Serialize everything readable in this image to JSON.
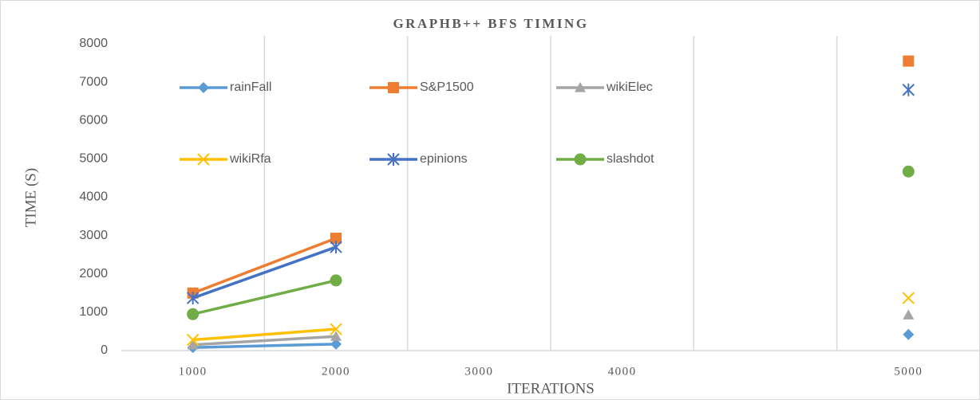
{
  "chart_data": {
    "type": "line",
    "title": "GRAPHB++ BFS TIMING",
    "xlabel": "ITERATIONS",
    "ylabel": "TIME (S)",
    "categories": [
      "1000",
      "2000",
      "3000",
      "4000",
      null,
      "5000"
    ],
    "series": [
      {
        "name": "rainFall",
        "color": "#5b9bd5",
        "marker": "diamond",
        "values": [
          80,
          170,
          null,
          null,
          null,
          420
        ]
      },
      {
        "name": "S&P1500",
        "color": "#ed7d31",
        "marker": "square",
        "values": [
          1500,
          2930,
          null,
          null,
          null,
          7550
        ]
      },
      {
        "name": "wikiElec",
        "color": "#a5a5a5",
        "marker": "triangle",
        "values": [
          150,
          370,
          null,
          null,
          null,
          930
        ]
      },
      {
        "name": "wikiRfa",
        "color": "#ffc000",
        "marker": "x",
        "values": [
          280,
          560,
          null,
          null,
          null,
          1370
        ]
      },
      {
        "name": "epinions",
        "color": "#4472c4",
        "marker": "asterisk",
        "values": [
          1370,
          2700,
          null,
          null,
          null,
          6800
        ]
      },
      {
        "name": "slashdot",
        "color": "#70ad47",
        "marker": "circle",
        "values": [
          950,
          1830,
          null,
          null,
          null,
          4670
        ]
      }
    ],
    "ylim": [
      0,
      8000
    ],
    "yticks": [
      0,
      1000,
      2000,
      3000,
      4000,
      5000,
      6000,
      7000,
      8000
    ],
    "grid": true,
    "legend": "top-left"
  }
}
